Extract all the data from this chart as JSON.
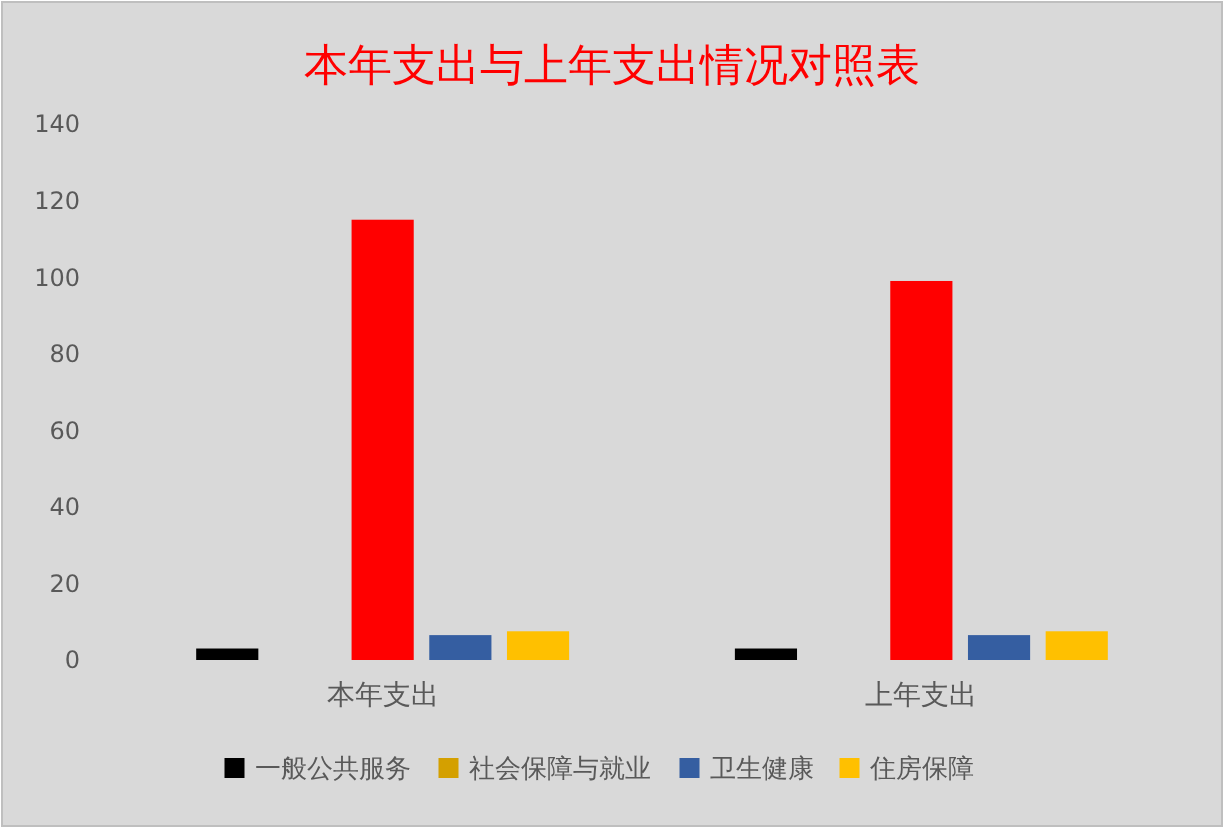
{
  "chart_data": {
    "type": "bar",
    "title": "本年支出与上年支出情况对照表",
    "categories": [
      "本年支出",
      "上年支出"
    ],
    "series": [
      {
        "name": "一般公共服务",
        "color": "#000000",
        "values": [
          3,
          3
        ]
      },
      {
        "name": "社会保障与就业",
        "color": "#d4a000",
        "values": [
          null,
          null
        ]
      },
      {
        "color": "#ff0000",
        "values": [
          115,
          99
        ]
      },
      {
        "name": "卫生健康",
        "color": "#355ea1",
        "values": [
          6.5,
          6.5
        ]
      },
      {
        "name": "住房保障",
        "color": "#ffc000",
        "values": [
          7.5,
          7.5
        ]
      }
    ],
    "ylim": [
      0,
      140
    ],
    "yticks": [
      0,
      20,
      40,
      60,
      80,
      100,
      120,
      140
    ],
    "grid": false,
    "legend": "bottom"
  }
}
